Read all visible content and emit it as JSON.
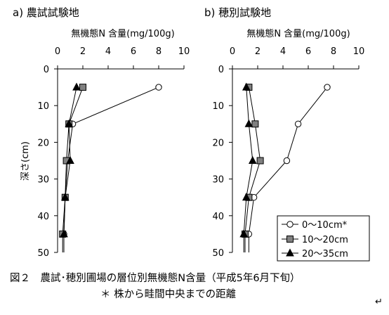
{
  "figure": {
    "caption_line1": "図２　農試･穂別圃場の層位別無機態N含量（平成5年6月下旬）",
    "caption_line2": "＊ 株から畦間中央までの距離",
    "corner_mark": "↵"
  },
  "chart_data": [
    {
      "type": "line",
      "title": "a) 農試試験地",
      "xlabel": "無機態N 含量(mg/100g)",
      "ylabel": "深さ(cm)",
      "xlim": [
        0,
        10
      ],
      "ylim": [
        0,
        50
      ],
      "y_inverted": true,
      "x_axis_position": "top",
      "x_ticks": [
        0,
        2,
        4,
        6,
        8,
        10
      ],
      "y_ticks": [
        0,
        10,
        20,
        30,
        40,
        50
      ],
      "grid": false,
      "series": [
        {
          "name": "0〜10cm*",
          "marker": "circle-open",
          "x": [
            8.0,
            1.2,
            0.8,
            0.6,
            0.5
          ],
          "y": [
            5,
            15,
            25,
            35,
            45
          ]
        },
        {
          "name": "10〜20cm",
          "marker": "square-gray",
          "x": [
            2.0,
            0.9,
            0.7,
            0.6,
            0.4
          ],
          "y": [
            5,
            15,
            25,
            35,
            45
          ]
        },
        {
          "name": "20〜35cm",
          "marker": "triangle-filled",
          "x": [
            1.5,
            0.9,
            1.0,
            0.6,
            0.5
          ],
          "y": [
            5,
            15,
            25,
            35,
            45
          ]
        }
      ]
    },
    {
      "type": "line",
      "title": "b) 穂別試験地",
      "xlabel": "無機態N 含量(mg/100g)",
      "xlim": [
        0,
        10
      ],
      "ylim": [
        0,
        50
      ],
      "y_inverted": true,
      "x_axis_position": "top",
      "x_ticks": [
        0,
        2,
        4,
        6,
        8,
        10
      ],
      "y_ticks": [
        0,
        10,
        20,
        30,
        40,
        50
      ],
      "grid": false,
      "legend_position": "bottom-right",
      "series": [
        {
          "name": "0〜10cm*",
          "marker": "circle-open",
          "x": [
            7.5,
            5.2,
            4.3,
            1.7,
            1.3
          ],
          "y": [
            5,
            15,
            25,
            35,
            45
          ]
        },
        {
          "name": "10〜20cm",
          "marker": "square-gray",
          "x": [
            1.3,
            1.8,
            2.2,
            1.3,
            1.0
          ],
          "y": [
            5,
            15,
            25,
            35,
            45
          ]
        },
        {
          "name": "20〜35cm",
          "marker": "triangle-filled",
          "x": [
            1.1,
            1.3,
            1.6,
            1.1,
            0.9
          ],
          "y": [
            5,
            15,
            25,
            35,
            45
          ]
        }
      ]
    }
  ]
}
